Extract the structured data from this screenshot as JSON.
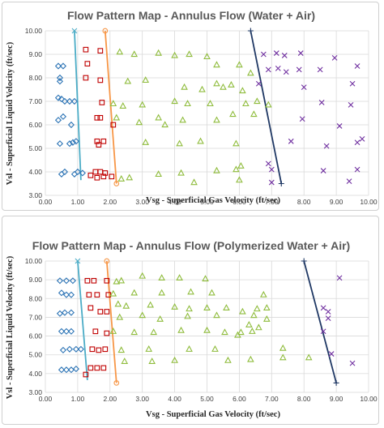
{
  "colors": {
    "bubble": "#2e75b6",
    "slug": "#c00000",
    "churn": "#8fbc3c",
    "annular": "#7030a0",
    "bubble_slug_line": "#4bacc6",
    "slug_churn_line": "#f79646",
    "churn_annular_line": "#1f3864",
    "grid": "#d9d9d9"
  },
  "chart_data": [
    {
      "type": "scatter",
      "title": "Flow Pattern Map - Annulus Flow (Water + Air)",
      "xlabel": "Vsg - Superficial Gas Velocity (ft/sec)",
      "ylabel": "Vsl - Superficial Liquid Velocity (ft/sec)",
      "xlim": [
        0,
        10
      ],
      "ylim": [
        3,
        10
      ],
      "xticks": [
        "0.00",
        "1.00",
        "2.00",
        "3.00",
        "4.00",
        "5.00",
        "6.00",
        "7.00",
        "8.00",
        "9.00",
        "10.00"
      ],
      "yticks": [
        "3.00",
        "4.00",
        "5.00",
        "6.00",
        "7.00",
        "8.00",
        "9.00",
        "10.00"
      ],
      "grid": true,
      "series": [
        {
          "marker": "diamond",
          "color": "#2e75b6",
          "points": [
            [
              0.4,
              8.5
            ],
            [
              0.55,
              8.5
            ],
            [
              0.45,
              7.85
            ],
            [
              0.4,
              7.15
            ],
            [
              0.5,
              7.1
            ],
            [
              0.6,
              7.0
            ],
            [
              0.75,
              7.0
            ],
            [
              0.9,
              7.0
            ],
            [
              0.4,
              6.2
            ],
            [
              0.55,
              6.35
            ],
            [
              0.8,
              6.0
            ],
            [
              0.45,
              5.2
            ],
            [
              0.75,
              5.2
            ],
            [
              0.85,
              5.25
            ],
            [
              0.95,
              5.3
            ],
            [
              0.5,
              3.9
            ],
            [
              0.6,
              4.0
            ],
            [
              0.9,
              3.9
            ],
            [
              1.0,
              4.0
            ],
            [
              1.15,
              3.95
            ],
            [
              0.45,
              8.0
            ]
          ]
        },
        {
          "marker": "square",
          "color": "#c00000",
          "points": [
            [
              1.25,
              9.2
            ],
            [
              1.7,
              9.15
            ],
            [
              1.3,
              8.6
            ],
            [
              1.25,
              8.0
            ],
            [
              1.7,
              7.9
            ],
            [
              1.75,
              6.95
            ],
            [
              1.6,
              6.3
            ],
            [
              1.7,
              6.3
            ],
            [
              1.6,
              5.3
            ],
            [
              1.65,
              5.15
            ],
            [
              1.8,
              5.3
            ],
            [
              1.55,
              4.0
            ],
            [
              1.7,
              4.0
            ],
            [
              1.85,
              3.95
            ],
            [
              1.4,
              3.85
            ],
            [
              1.6,
              3.75
            ],
            [
              1.8,
              3.8
            ],
            [
              2.05,
              3.8
            ],
            [
              2.1,
              6.0
            ]
          ]
        },
        {
          "marker": "triangle",
          "color": "#8fbc3c",
          "points": [
            [
              2.3,
              9.1
            ],
            [
              2.75,
              9.0
            ],
            [
              3.5,
              9.05
            ],
            [
              4.0,
              8.95
            ],
            [
              4.45,
              9.0
            ],
            [
              5.0,
              8.9
            ],
            [
              5.3,
              8.55
            ],
            [
              6.0,
              8.55
            ],
            [
              6.35,
              8.2
            ],
            [
              2.55,
              7.85
            ],
            [
              3.1,
              7.9
            ],
            [
              4.3,
              7.6
            ],
            [
              4.85,
              7.5
            ],
            [
              5.3,
              7.75
            ],
            [
              5.5,
              7.6
            ],
            [
              5.75,
              7.7
            ],
            [
              6.1,
              7.45
            ],
            [
              6.55,
              7.0
            ],
            [
              2.1,
              6.9
            ],
            [
              2.4,
              6.8
            ],
            [
              3.0,
              6.85
            ],
            [
              4.0,
              7.0
            ],
            [
              4.4,
              6.9
            ],
            [
              5.1,
              6.9
            ],
            [
              6.2,
              6.9
            ],
            [
              6.9,
              6.85
            ],
            [
              2.2,
              6.3
            ],
            [
              2.9,
              6.1
            ],
            [
              3.5,
              6.3
            ],
            [
              3.7,
              6.0
            ],
            [
              4.25,
              6.2
            ],
            [
              5.3,
              6.2
            ],
            [
              5.8,
              6.45
            ],
            [
              6.45,
              6.45
            ],
            [
              3.1,
              5.25
            ],
            [
              4.15,
              5.2
            ],
            [
              4.8,
              5.3
            ],
            [
              5.9,
              5.2
            ],
            [
              2.6,
              3.75
            ],
            [
              3.5,
              3.9
            ],
            [
              4.2,
              3.95
            ],
            [
              5.3,
              4.05
            ],
            [
              5.9,
              4.1
            ],
            [
              6.05,
              4.25
            ],
            [
              2.35,
              3.7
            ],
            [
              4.6,
              3.55
            ],
            [
              6.0,
              3.65
            ]
          ]
        },
        {
          "marker": "x",
          "color": "#7030a0",
          "points": [
            [
              6.75,
              9.0
            ],
            [
              7.15,
              9.05
            ],
            [
              7.4,
              8.95
            ],
            [
              7.9,
              9.05
            ],
            [
              8.95,
              8.85
            ],
            [
              9.65,
              8.5
            ],
            [
              6.9,
              8.35
            ],
            [
              7.2,
              8.4
            ],
            [
              7.45,
              8.25
            ],
            [
              7.85,
              8.35
            ],
            [
              8.5,
              8.35
            ],
            [
              6.6,
              7.75
            ],
            [
              8.0,
              7.6
            ],
            [
              9.5,
              7.75
            ],
            [
              7.95,
              6.25
            ],
            [
              8.55,
              6.95
            ],
            [
              9.45,
              6.85
            ],
            [
              9.1,
              5.95
            ],
            [
              7.6,
              5.3
            ],
            [
              8.7,
              5.1
            ],
            [
              9.8,
              5.4
            ],
            [
              9.65,
              5.25
            ],
            [
              6.9,
              4.35
            ],
            [
              7.0,
              4.1
            ],
            [
              8.6,
              4.05
            ],
            [
              9.65,
              4.1
            ],
            [
              7.0,
              3.55
            ],
            [
              9.4,
              3.6
            ]
          ]
        }
      ],
      "lines": [
        {
          "color": "#4bacc6",
          "start_marker": "x",
          "points": [
            [
              0.9,
              10.0
            ],
            [
              1.1,
              3.65
            ]
          ]
        },
        {
          "color": "#f79646",
          "start_marker": "circle",
          "end_marker": "circle",
          "points": [
            [
              1.85,
              10.0
            ],
            [
              2.2,
              3.5
            ]
          ]
        },
        {
          "color": "#1f3864",
          "start_marker": "plus",
          "end_marker": "plus",
          "points": [
            [
              6.35,
              10.0
            ],
            [
              7.3,
              3.5
            ]
          ]
        }
      ]
    },
    {
      "type": "scatter",
      "title": "Flow Pattern Map - Annulus Flow (Polymerized Water + Air)",
      "xlabel": "Vsg - Superficial Gas Velocity (ft/sec)",
      "ylabel": "Vsl - Superficial Liquid Velocity (ft/sec)",
      "xlim": [
        0,
        10
      ],
      "ylim": [
        3,
        10
      ],
      "xticks": [
        "0.00",
        "1.00",
        "2.00",
        "3.00",
        "4.00",
        "5.00",
        "6.00",
        "7.00",
        "8.00",
        "9.00",
        "10.00"
      ],
      "yticks": [
        "3.00",
        "4.00",
        "5.00",
        "6.00",
        "7.00",
        "8.00",
        "9.00",
        "10.00"
      ],
      "grid": true,
      "series": [
        {
          "marker": "diamond",
          "color": "#2e75b6",
          "points": [
            [
              0.45,
              8.95
            ],
            [
              0.65,
              8.95
            ],
            [
              0.85,
              8.95
            ],
            [
              0.5,
              8.3
            ],
            [
              0.65,
              8.2
            ],
            [
              0.8,
              8.2
            ],
            [
              0.45,
              7.2
            ],
            [
              0.6,
              7.25
            ],
            [
              0.8,
              7.25
            ],
            [
              0.5,
              6.25
            ],
            [
              0.65,
              6.25
            ],
            [
              0.8,
              6.25
            ],
            [
              0.55,
              5.25
            ],
            [
              0.75,
              5.3
            ],
            [
              0.95,
              5.3
            ],
            [
              1.1,
              5.3
            ],
            [
              0.5,
              4.2
            ],
            [
              0.65,
              4.2
            ],
            [
              0.8,
              4.2
            ],
            [
              0.95,
              4.25
            ]
          ]
        },
        {
          "marker": "square",
          "color": "#c00000",
          "points": [
            [
              1.3,
              8.95
            ],
            [
              1.5,
              8.95
            ],
            [
              1.9,
              8.95
            ],
            [
              1.35,
              8.2
            ],
            [
              1.6,
              8.2
            ],
            [
              1.95,
              8.2
            ],
            [
              1.4,
              7.5
            ],
            [
              1.7,
              7.3
            ],
            [
              1.9,
              7.3
            ],
            [
              1.55,
              6.25
            ],
            [
              1.9,
              6.15
            ],
            [
              1.45,
              5.3
            ],
            [
              1.65,
              5.25
            ],
            [
              1.85,
              5.3
            ],
            [
              1.4,
              4.3
            ],
            [
              1.6,
              4.3
            ],
            [
              1.8,
              4.3
            ],
            [
              1.25,
              3.95
            ]
          ]
        },
        {
          "marker": "triangle",
          "color": "#8fbc3c",
          "points": [
            [
              2.2,
              8.9
            ],
            [
              2.35,
              8.95
            ],
            [
              3.0,
              9.2
            ],
            [
              3.6,
              9.1
            ],
            [
              4.15,
              9.1
            ],
            [
              4.95,
              9.05
            ],
            [
              2.1,
              8.25
            ],
            [
              2.75,
              8.3
            ],
            [
              3.6,
              8.3
            ],
            [
              4.5,
              8.35
            ],
            [
              5.15,
              8.3
            ],
            [
              6.75,
              8.2
            ],
            [
              2.25,
              7.7
            ],
            [
              2.5,
              7.6
            ],
            [
              3.25,
              7.65
            ],
            [
              4.0,
              7.55
            ],
            [
              4.45,
              7.45
            ],
            [
              5.0,
              7.5
            ],
            [
              5.6,
              7.5
            ],
            [
              6.1,
              7.3
            ],
            [
              6.55,
              7.45
            ],
            [
              6.85,
              7.5
            ],
            [
              2.3,
              7.0
            ],
            [
              3.0,
              7.1
            ],
            [
              3.55,
              6.9
            ],
            [
              4.4,
              7.05
            ],
            [
              5.3,
              7.1
            ],
            [
              6.45,
              7.1
            ],
            [
              6.85,
              6.9
            ],
            [
              2.1,
              6.25
            ],
            [
              2.75,
              6.2
            ],
            [
              3.35,
              6.2
            ],
            [
              4.2,
              6.3
            ],
            [
              5.0,
              6.3
            ],
            [
              5.55,
              6.2
            ],
            [
              6.05,
              6.2
            ],
            [
              6.4,
              6.25
            ],
            [
              6.6,
              6.45
            ],
            [
              6.3,
              6.6
            ],
            [
              5.95,
              6.05
            ],
            [
              2.35,
              5.25
            ],
            [
              3.2,
              5.3
            ],
            [
              4.45,
              5.3
            ],
            [
              5.25,
              5.3
            ],
            [
              7.35,
              5.35
            ],
            [
              2.45,
              4.65
            ],
            [
              3.3,
              4.65
            ],
            [
              4.0,
              4.7
            ],
            [
              5.65,
              4.7
            ],
            [
              6.35,
              4.75
            ],
            [
              7.35,
              4.85
            ],
            [
              8.15,
              4.85
            ]
          ]
        },
        {
          "marker": "x",
          "color": "#7030a0",
          "points": [
            [
              9.1,
              9.1
            ],
            [
              8.6,
              7.5
            ],
            [
              8.75,
              7.3
            ],
            [
              8.75,
              6.95
            ],
            [
              8.6,
              6.25
            ],
            [
              8.85,
              5.05
            ],
            [
              9.5,
              4.55
            ]
          ]
        }
      ],
      "lines": [
        {
          "color": "#4bacc6",
          "start_marker": "x",
          "points": [
            [
              1.0,
              10.0
            ],
            [
              1.3,
              3.65
            ]
          ]
        },
        {
          "color": "#f79646",
          "start_marker": "circle",
          "end_marker": "circle",
          "points": [
            [
              1.9,
              10.0
            ],
            [
              2.2,
              3.5
            ]
          ]
        },
        {
          "color": "#1f3864",
          "start_marker": "plus",
          "end_marker": "plus",
          "points": [
            [
              8.0,
              10.0
            ],
            [
              9.0,
              3.5
            ]
          ]
        }
      ]
    }
  ]
}
